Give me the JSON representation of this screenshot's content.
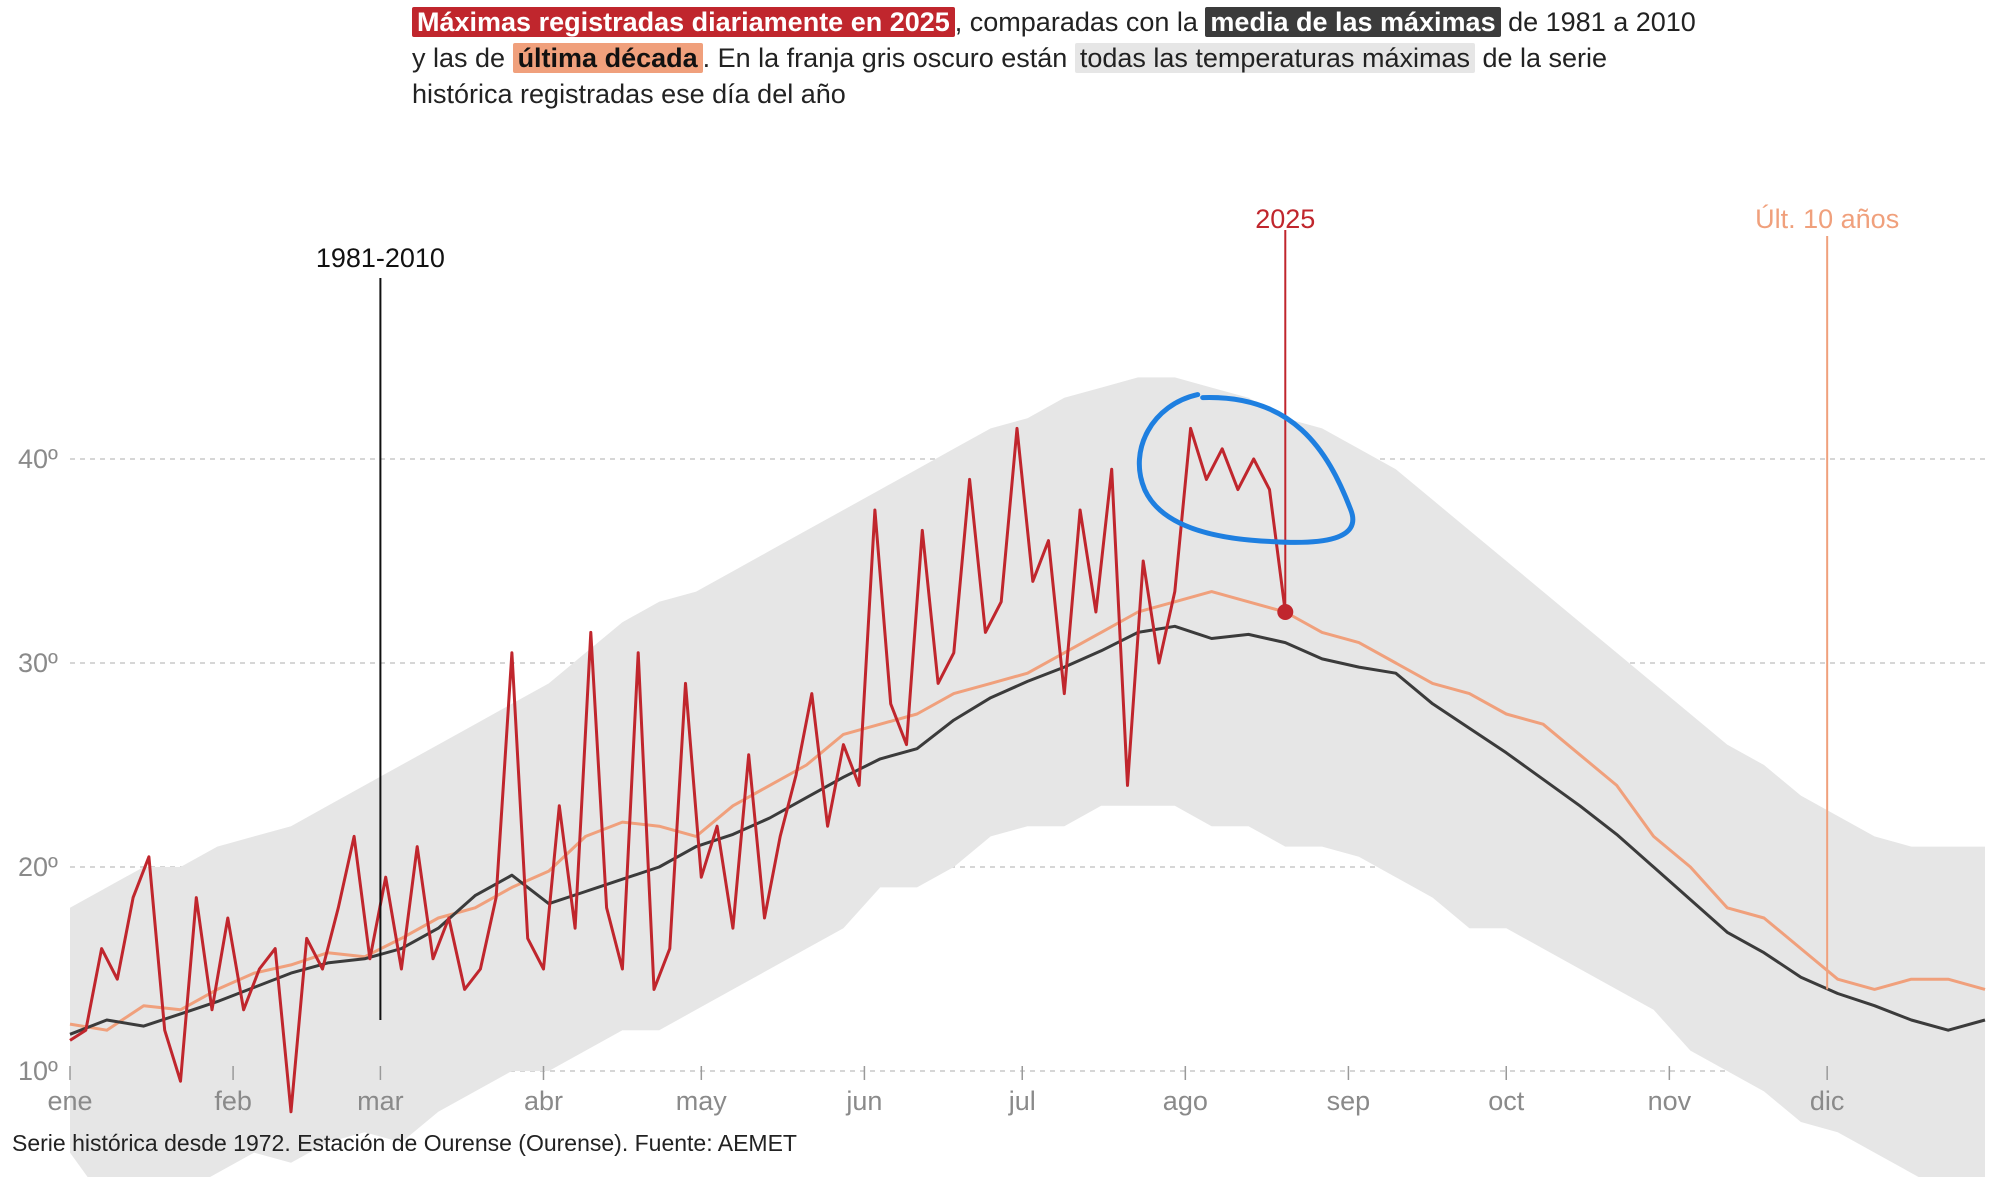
{
  "title": {
    "part1": "Máximas registradas diariamente en 2025",
    "part2": ", comparadas con la ",
    "part3": "media de las máximas",
    "part4": " de 1981 a 2010 y las de ",
    "part5": "última década",
    "part6": ". En la franja gris oscuro están ",
    "part7": "todas las temperaturas máximas",
    "part8": " de la serie histórica registradas ese día del año"
  },
  "footnote": "Serie histórica desde 1972. Estación de Ourense (Ourense). Fuente: AEMET",
  "colors": {
    "series_2025": "#c0262d",
    "series_mean": "#3b3b3b",
    "series_decade": "#f0a07c",
    "band": "#e6e6e6",
    "grid": "#c8c8c8",
    "axis_text": "#8a8a8a",
    "highlight_circle": "#1e7fe0"
  },
  "chart_data": {
    "type": "line",
    "x_unit": "day of year",
    "xlim": [
      1,
      365
    ],
    "ylim": [
      0,
      45
    ],
    "y_ticks": [
      {
        "value": 10,
        "label": "10º"
      },
      {
        "value": 20,
        "label": "20º"
      },
      {
        "value": 30,
        "label": "30º"
      },
      {
        "value": 40,
        "label": "40º"
      }
    ],
    "grid": true,
    "months": [
      {
        "label": "ene",
        "day": 1
      },
      {
        "label": "feb",
        "day": 32
      },
      {
        "label": "mar",
        "day": 60
      },
      {
        "label": "abr",
        "day": 91
      },
      {
        "label": "may",
        "day": 121
      },
      {
        "label": "jun",
        "day": 152
      },
      {
        "label": "jul",
        "day": 182
      },
      {
        "label": "ago",
        "day": 213
      },
      {
        "label": "sep",
        "day": 244
      },
      {
        "label": "oct",
        "day": 274
      },
      {
        "label": "nov",
        "day": 305
      },
      {
        "label": "dic",
        "day": 335
      }
    ],
    "band": {
      "name": "todas las temperaturas máximas",
      "days": [
        1,
        8,
        15,
        22,
        29,
        36,
        43,
        50,
        57,
        64,
        71,
        78,
        85,
        92,
        99,
        106,
        113,
        120,
        127,
        134,
        141,
        148,
        155,
        162,
        169,
        176,
        183,
        190,
        197,
        204,
        211,
        218,
        225,
        232,
        239,
        246,
        253,
        260,
        267,
        274,
        281,
        288,
        295,
        302,
        309,
        316,
        323,
        330,
        337,
        344,
        351,
        358,
        365
      ],
      "upper": [
        18,
        19,
        20,
        20,
        21,
        21.5,
        22,
        23,
        24,
        25,
        26,
        27,
        28,
        29,
        30.5,
        32,
        33,
        33.5,
        34.5,
        35.5,
        36.5,
        37.5,
        38.5,
        39.5,
        40.5,
        41.5,
        42,
        43,
        43.5,
        44,
        44,
        43.5,
        43,
        42,
        41.5,
        40.5,
        39.5,
        38,
        36.5,
        35,
        33.5,
        32,
        30.5,
        29,
        27.5,
        26,
        25,
        23.5,
        22.5,
        21.5,
        21,
        21,
        21
      ],
      "lower": [
        6,
        3.5,
        3,
        4,
        5,
        6,
        5.5,
        6.5,
        7,
        6.5,
        8,
        9,
        10,
        10,
        11,
        12,
        12,
        13,
        14,
        15,
        16,
        17,
        19,
        19,
        20,
        21.5,
        22,
        22,
        23,
        23,
        23,
        22,
        22,
        21,
        21,
        20.5,
        19.5,
        18.5,
        17,
        17,
        16,
        15,
        14,
        13,
        11,
        10,
        9,
        7.5,
        7,
        6,
        5,
        4,
        2
      ]
    },
    "series": [
      {
        "name": "1981-2010",
        "days": [
          1,
          8,
          15,
          22,
          29,
          36,
          43,
          50,
          57,
          64,
          71,
          78,
          85,
          92,
          99,
          106,
          113,
          120,
          127,
          134,
          141,
          148,
          155,
          162,
          169,
          176,
          183,
          190,
          197,
          204,
          211,
          218,
          225,
          232,
          239,
          246,
          253,
          260,
          267,
          274,
          281,
          288,
          295,
          302,
          309,
          316,
          323,
          330,
          337,
          344,
          351,
          358,
          365
        ],
        "values": [
          11.8,
          12.5,
          12.2,
          12.8,
          13.4,
          14.1,
          14.8,
          15.3,
          15.5,
          16.0,
          17.0,
          18.6,
          19.6,
          18.2,
          18.8,
          19.4,
          20.0,
          21.0,
          21.6,
          22.4,
          23.4,
          24.4,
          25.3,
          25.8,
          27.2,
          28.3,
          29.1,
          29.8,
          30.6,
          31.5,
          31.8,
          31.2,
          31.4,
          31.0,
          30.2,
          29.8,
          29.5,
          28.0,
          26.8,
          25.6,
          24.3,
          23.0,
          21.6,
          20.0,
          18.4,
          16.8,
          15.8,
          14.6,
          13.8,
          13.2,
          12.5,
          12.0,
          12.5
        ]
      },
      {
        "name": "Últ. 10 años",
        "days": [
          1,
          8,
          15,
          22,
          29,
          36,
          43,
          50,
          57,
          64,
          71,
          78,
          85,
          92,
          99,
          106,
          113,
          120,
          127,
          134,
          141,
          148,
          155,
          162,
          169,
          176,
          183,
          190,
          197,
          204,
          211,
          218,
          225,
          232,
          239,
          246,
          253,
          260,
          267,
          274,
          281,
          288,
          295,
          302,
          309,
          316,
          323,
          330,
          337,
          344,
          351,
          358,
          365
        ],
        "values": [
          12.3,
          12.0,
          13.2,
          13.0,
          14.0,
          14.8,
          15.2,
          15.8,
          15.6,
          16.5,
          17.5,
          18.0,
          19.0,
          19.8,
          21.5,
          22.2,
          22.0,
          21.5,
          23.0,
          24.0,
          25.0,
          26.5,
          27.0,
          27.5,
          28.5,
          29.0,
          29.5,
          30.5,
          31.5,
          32.5,
          33.0,
          33.5,
          33.0,
          32.5,
          31.5,
          31.0,
          30.0,
          29.0,
          28.5,
          27.5,
          27.0,
          25.5,
          24.0,
          21.5,
          20.0,
          18.0,
          17.5,
          16.0,
          14.5,
          14.0,
          14.5,
          14.5,
          14.0
        ]
      },
      {
        "name": "2025",
        "days": [
          1,
          4,
          7,
          10,
          13,
          16,
          19,
          22,
          25,
          28,
          31,
          34,
          37,
          40,
          43,
          46,
          49,
          52,
          55,
          58,
          61,
          64,
          67,
          70,
          73,
          76,
          79,
          82,
          85,
          88,
          91,
          94,
          97,
          100,
          103,
          106,
          109,
          112,
          115,
          118,
          121,
          124,
          127,
          130,
          133,
          136,
          139,
          142,
          145,
          148,
          151,
          154,
          157,
          160,
          163,
          166,
          169,
          172,
          175,
          178,
          181,
          184,
          187,
          190,
          193,
          196,
          199,
          202,
          205,
          208,
          211,
          214,
          217,
          220,
          223,
          226,
          229,
          232
        ],
        "values": [
          11.5,
          12.0,
          16.0,
          14.5,
          18.5,
          20.5,
          12.0,
          9.5,
          18.5,
          13.0,
          17.5,
          13.0,
          15.0,
          16.0,
          8.0,
          16.5,
          15.0,
          18.0,
          21.5,
          15.5,
          19.5,
          15.0,
          21.0,
          15.5,
          17.5,
          14.0,
          15.0,
          18.5,
          30.5,
          16.5,
          15.0,
          23.0,
          17.0,
          31.5,
          18.0,
          15.0,
          30.5,
          14.0,
          16.0,
          29.0,
          19.5,
          22.0,
          17.0,
          25.5,
          17.5,
          21.5,
          24.5,
          28.5,
          22.0,
          26.0,
          24.0,
          37.5,
          28.0,
          26.0,
          36.5,
          29.0,
          30.5,
          39.0,
          31.5,
          33.0,
          41.5,
          34.0,
          36.0,
          28.5,
          37.5,
          32.5,
          39.5,
          24.0,
          35.0,
          30.0,
          33.5,
          41.5,
          39.0,
          40.5,
          38.5,
          40.0,
          38.5,
          32.5
        ]
      }
    ],
    "annotations": [
      {
        "label": "1981-2010",
        "day": 60
      },
      {
        "label": "2025",
        "day": 232
      },
      {
        "label": "Últ. 10 años",
        "day": 335
      }
    ]
  }
}
